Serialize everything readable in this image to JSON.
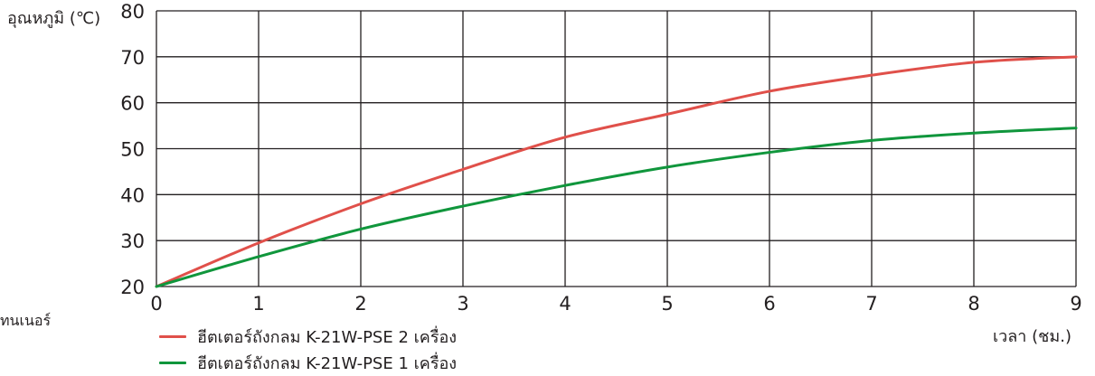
{
  "side_note": "ทนเนอร์",
  "chart_data": {
    "type": "line",
    "title": "",
    "xlabel": "เวลา (ชม.)",
    "ylabel": "อุณหภูมิ (℃)",
    "x_ticks": [
      0,
      1,
      2,
      3,
      4,
      5,
      6,
      7,
      8,
      9
    ],
    "y_ticks": [
      20,
      30,
      40,
      50,
      60,
      70,
      80
    ],
    "xlim": [
      0,
      9
    ],
    "ylim": [
      20,
      80
    ],
    "grid": true,
    "legend_position": "bottom-left",
    "x": [
      0,
      1,
      2,
      3,
      4,
      5,
      6,
      7,
      8,
      9
    ],
    "series": [
      {
        "name": "ฮีตเตอร์ถังกลม K-21W-PSE 2 เครื่อง",
        "color": "#e0504a",
        "values": [
          20,
          29.5,
          38,
          45.5,
          52.5,
          57.5,
          62.5,
          66,
          68.8,
          70
        ]
      },
      {
        "name": "ฮีตเตอร์ถังกลม K-21W-PSE 1 เครื่อง",
        "color": "#10963c",
        "values": [
          20,
          26.5,
          32.5,
          37.5,
          42,
          46,
          49.2,
          51.8,
          53.4,
          54.5
        ]
      }
    ]
  }
}
